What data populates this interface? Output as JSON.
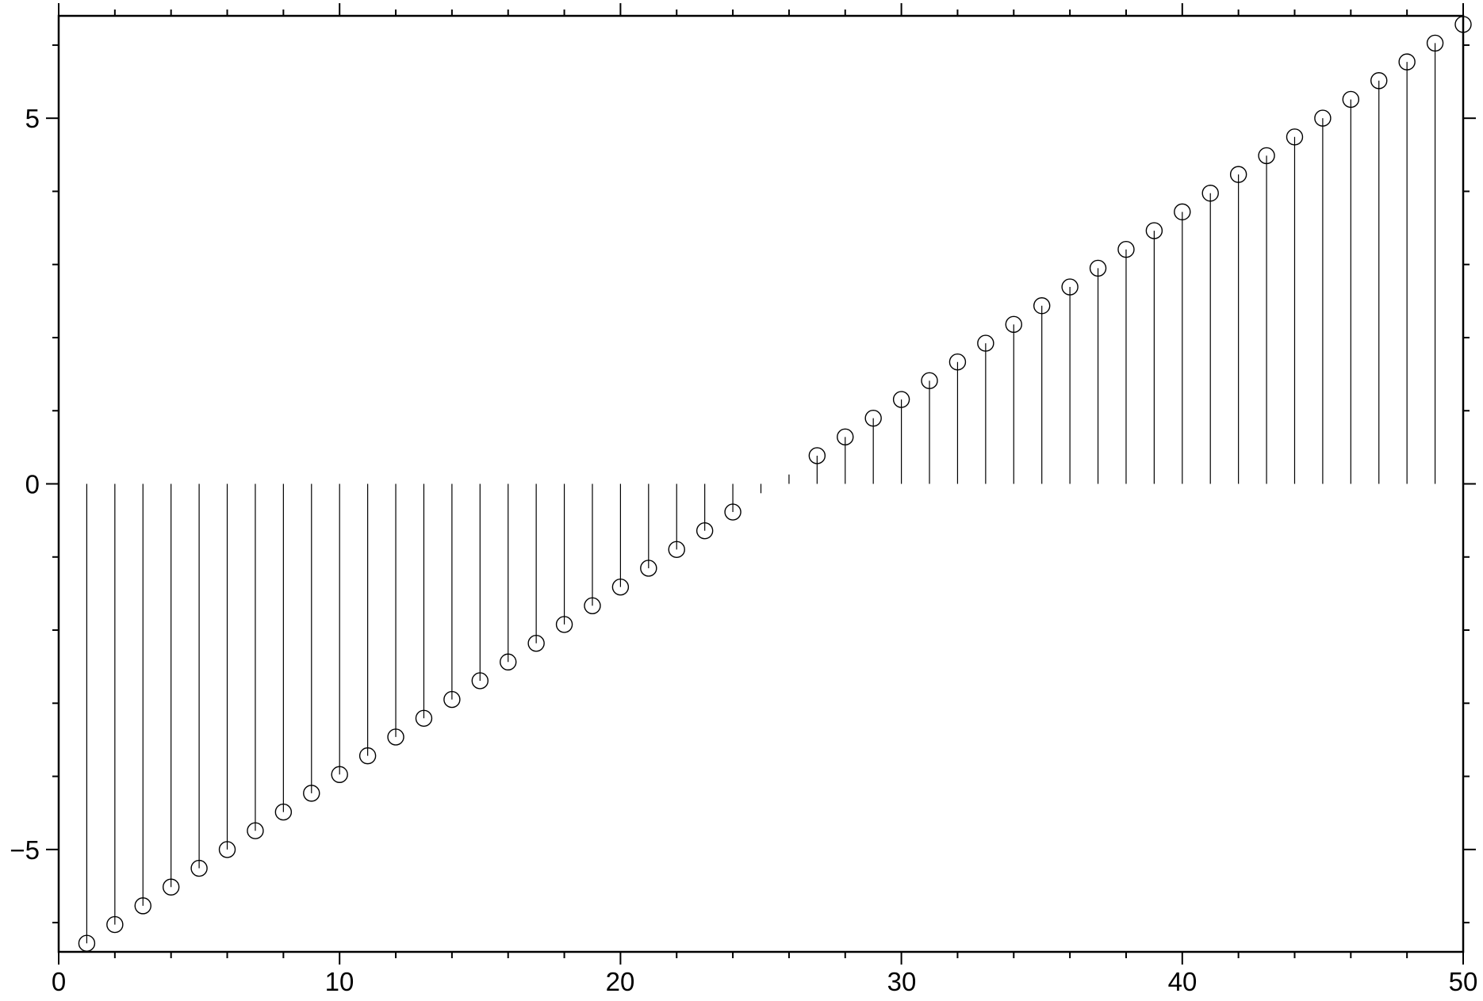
{
  "chart_data": {
    "type": "stem",
    "title": "",
    "xlabel": "",
    "ylabel": "",
    "xlim": [
      0,
      50
    ],
    "ylim": [
      -6.4,
      6.4
    ],
    "x_major_ticks": [
      0,
      10,
      20,
      30,
      40,
      50
    ],
    "x_tick_labels": [
      "0",
      "10",
      "20",
      "30",
      "40",
      "50"
    ],
    "x_minor_tick_step": 2,
    "y_major_ticks": [
      -5,
      0,
      5
    ],
    "y_tick_labels": [
      "−5",
      "0",
      "5"
    ],
    "y_minor_tick_step": 1,
    "grid": false,
    "marker": "open-circle",
    "color": "#000000",
    "x": [
      1,
      2,
      3,
      4,
      5,
      6,
      7,
      8,
      9,
      10,
      11,
      12,
      13,
      14,
      15,
      16,
      17,
      18,
      19,
      20,
      21,
      22,
      23,
      24,
      25,
      26,
      27,
      28,
      29,
      30,
      31,
      32,
      33,
      34,
      35,
      36,
      37,
      38,
      39,
      40,
      41,
      42,
      43,
      44,
      45,
      46,
      47,
      48,
      49,
      50
    ],
    "y": [
      -6.283,
      -6.027,
      -5.77,
      -5.514,
      -5.257,
      -5.001,
      -4.744,
      -4.488,
      -4.231,
      -3.975,
      -3.719,
      -3.462,
      -3.206,
      -2.949,
      -2.693,
      -2.436,
      -2.18,
      -1.923,
      -1.667,
      -1.411,
      -1.154,
      -0.898,
      -0.641,
      -0.385,
      -0.128,
      0.128,
      0.385,
      0.641,
      0.898,
      1.154,
      1.411,
      1.667,
      1.923,
      2.18,
      2.436,
      2.693,
      2.949,
      3.206,
      3.462,
      3.719,
      3.975,
      4.231,
      4.488,
      4.744,
      5.001,
      5.257,
      5.514,
      5.77,
      6.027,
      6.283
    ]
  }
}
